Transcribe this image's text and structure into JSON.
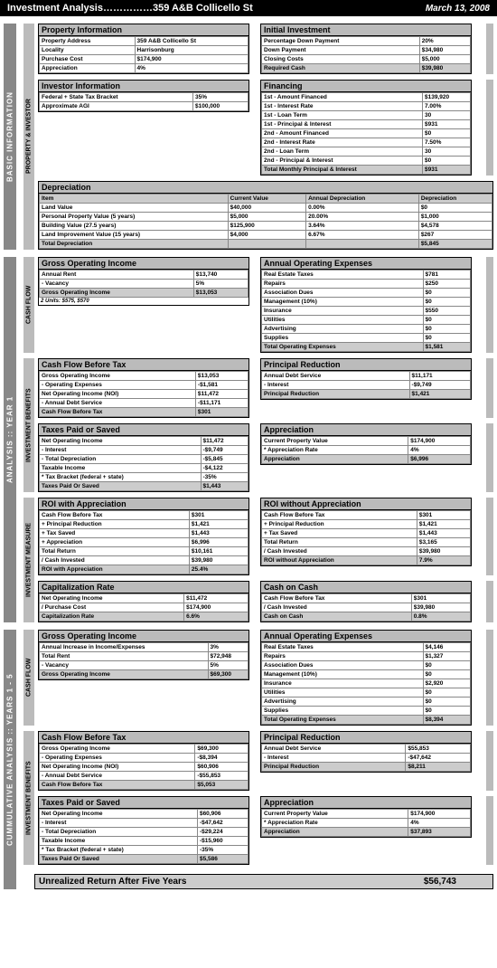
{
  "header": {
    "title": "Investment Analysis……………359 A&B Collicello St",
    "date": "March 13, 2008"
  },
  "sections": {
    "basic": {
      "label": "BASIC INFORMATION",
      "sub": {
        "propInv": {
          "label": "PROPERTY & INVESTOR",
          "propertyInfo": {
            "title": "Property Information",
            "rows": [
              [
                "Property Address",
                "359 A&B Collicello St"
              ],
              [
                "Locality",
                "Harrisonburg"
              ],
              [
                "Purchase Cost",
                "$174,900"
              ],
              [
                "Appreciation",
                "4%"
              ]
            ]
          },
          "initialInvestment": {
            "title": "Initial Investment",
            "rows": [
              [
                "Percentage Down Payment",
                "20%"
              ],
              [
                "Down Payment",
                "$34,980"
              ],
              [
                "Closing Costs",
                "$5,000"
              ]
            ],
            "total": [
              "Required Cash",
              "$39,980"
            ]
          },
          "investorInfo": {
            "title": "Investor Information",
            "rows": [
              [
                "Federal + State Tax Bracket",
                "35%"
              ],
              [
                "Approximate AGI",
                "$100,000"
              ]
            ]
          },
          "financing": {
            "title": "Financing",
            "rows": [
              [
                "1st - Amount Financed",
                "$139,920"
              ],
              [
                "1st - Interest Rate",
                "7.00%"
              ],
              [
                "1st - Loan Term",
                "30"
              ],
              [
                "1st - Principal & Interest",
                "$931"
              ],
              [
                "2nd - Amount Financed",
                "$0"
              ],
              [
                "2nd - Interest Rate",
                "7.50%"
              ],
              [
                "2nd - Loan Term",
                "30"
              ],
              [
                "2nd - Principal & Interest",
                "$0"
              ]
            ],
            "total": [
              "Total Monthly Principal & Interest",
              "$931"
            ]
          },
          "depreciation": {
            "title": "Depreciation",
            "headers": [
              "Item",
              "Current Value",
              "Annual Depreciation",
              "Depreciation"
            ],
            "rows": [
              [
                "Land Value",
                "$40,000",
                "0.00%",
                "$0"
              ],
              [
                "Personal Property Value (5 years)",
                "$5,000",
                "20.00%",
                "$1,000"
              ],
              [
                "Building Value (27.5 years)",
                "$125,900",
                "3.64%",
                "$4,578"
              ],
              [
                "Land Improvement Value (15 years)",
                "$4,000",
                "6.67%",
                "$267"
              ]
            ],
            "total": [
              "Total Depreciation",
              "",
              "",
              "$5,845"
            ]
          }
        }
      }
    },
    "year1": {
      "label": "ANALYSIS  ::  YEAR 1",
      "cashFlow": {
        "label": "CASH FLOW",
        "goi": {
          "title": "Gross Operating Income",
          "rows": [
            [
              "Annual Rent",
              "$13,740"
            ],
            [
              "- Vacancy",
              "5%"
            ]
          ],
          "total": [
            "Gross Operating Income",
            "$13,053"
          ],
          "note": "2 Units: $575, $570"
        },
        "aoe": {
          "title": "Annual Operating Expenses",
          "rows": [
            [
              "Real Estate Taxes",
              "$781"
            ],
            [
              "Repairs",
              "$250"
            ],
            [
              "Association Dues",
              "$0"
            ],
            [
              "Management (10%)",
              "$0"
            ],
            [
              "Insurance",
              "$550"
            ],
            [
              "Utilities",
              "$0"
            ],
            [
              "Advertising",
              "$0"
            ],
            [
              "Supplies",
              "$0"
            ]
          ],
          "total": [
            "Total Operating Expenses",
            "$1,581"
          ]
        }
      },
      "invBenefits": {
        "label": "INVESTMENT BENEFITS",
        "cfbt": {
          "title": "Cash Flow Before Tax",
          "rows": [
            [
              "Gross Operating Income",
              "$13,053"
            ],
            [
              "- Operating Expenses",
              "-$1,581"
            ],
            [
              "Net Operating Income (NOI)",
              "$11,472"
            ],
            [
              "- Annual Debt Service",
              "-$11,171"
            ]
          ],
          "total": [
            "Cash Flow Before Tax",
            "$301"
          ]
        },
        "pr": {
          "title": "Principal Reduction",
          "rows": [
            [
              "Annual Debt Service",
              "$11,171"
            ],
            [
              "- Interest",
              "-$9,749"
            ]
          ],
          "total": [
            "Principal Reduction",
            "$1,421"
          ]
        },
        "taxes": {
          "title": "Taxes Paid or Saved",
          "rows": [
            [
              "Net Operating Income",
              "$11,472"
            ],
            [
              "- Interest",
              "-$9,749"
            ],
            [
              "- Total Depreciation",
              "-$5,845"
            ],
            [
              "Taxable Income",
              "-$4,122"
            ],
            [
              "* Tax Bracket (federal + state)",
              "-35%"
            ]
          ],
          "total": [
            "Taxes Paid Or Saved",
            "$1,443"
          ]
        },
        "apprec": {
          "title": "Appreciation",
          "rows": [
            [
              "Current Property Value",
              "$174,900"
            ],
            [
              "* Appreciation Rate",
              "4%"
            ]
          ],
          "total": [
            "Appreciation",
            "$6,996"
          ]
        }
      },
      "invMeasure": {
        "label": "INVESTMENT MEASURE",
        "roiWith": {
          "title": "ROI with Appreciation",
          "rows": [
            [
              "Cash Flow Before Tax",
              "$301"
            ],
            [
              "+ Principal Reduction",
              "$1,421"
            ],
            [
              "+ Tax Saved",
              "$1,443"
            ],
            [
              "+ Appreciation",
              "$6,996"
            ],
            [
              "Total Return",
              "$10,161"
            ],
            [
              "/ Cash Invested",
              "$39,980"
            ]
          ],
          "total": [
            "ROI with Appreciation",
            "25.4%"
          ]
        },
        "roiWithout": {
          "title": "ROI without Appreciation",
          "rows": [
            [
              "Cash Flow Before Tax",
              "$301"
            ],
            [
              "+ Principal Reduction",
              "$1,421"
            ],
            [
              "+ Tax Saved",
              "$1,443"
            ],
            [
              "Total Return",
              "$3,165"
            ],
            [
              "/ Cash Invested",
              "$39,980"
            ]
          ],
          "total": [
            "ROI without Appreciation",
            "7.9%"
          ]
        },
        "cap": {
          "title": "Capitalization Rate",
          "rows": [
            [
              "Net Operating Income",
              "$11,472"
            ],
            [
              "/ Purchase Cost",
              "$174,900"
            ]
          ],
          "total": [
            "Capitalization Rate",
            "6.6%"
          ]
        },
        "coc": {
          "title": "Cash on Cash",
          "rows": [
            [
              "Cash Flow Before Tax",
              "$301"
            ],
            [
              "/ Cash Invested",
              "$39,980"
            ]
          ],
          "total": [
            "Cash on Cash",
            "0.8%"
          ]
        }
      }
    },
    "years15": {
      "label": "CUMMULATIVE ANALYSIS  ::  YEARS 1 - 5",
      "cashFlow": {
        "label": "CASH FLOW",
        "goi": {
          "title": "Gross Operating Income",
          "rows": [
            [
              "Annual Increase in Income/Expenses",
              "3%"
            ],
            [
              "Total Rent",
              "$72,948"
            ],
            [
              "- Vacancy",
              "5%"
            ]
          ],
          "total": [
            "Gross Operating Income",
            "$69,300"
          ]
        },
        "aoe": {
          "title": "Annual Operating Expenses",
          "rows": [
            [
              "Real Estate Taxes",
              "$4,146"
            ],
            [
              "Repairs",
              "$1,327"
            ],
            [
              "Association Dues",
              "$0"
            ],
            [
              "Management (10%)",
              "$0"
            ],
            [
              "Insurance",
              "$2,920"
            ],
            [
              "Utilities",
              "$0"
            ],
            [
              "Advertising",
              "$0"
            ],
            [
              "Supplies",
              "$0"
            ]
          ],
          "total": [
            "Total Operating Expenses",
            "$8,394"
          ]
        }
      },
      "invBenefits": {
        "label": "INVESTMENT BENEFITS",
        "cfbt": {
          "title": "Cash Flow Before Tax",
          "rows": [
            [
              "Gross Operating Income",
              "$69,300"
            ],
            [
              "- Operating Expenses",
              "-$8,394"
            ],
            [
              "Net Operating Income (NOI)",
              "$60,906"
            ],
            [
              "- Annual Debt Service",
              "-$55,853"
            ]
          ],
          "total": [
            "Cash Flow Before Tax",
            "$5,053"
          ]
        },
        "pr": {
          "title": "Principal Reduction",
          "rows": [
            [
              "Annual Debt Service",
              "$55,853"
            ],
            [
              "- Interest",
              "-$47,642"
            ]
          ],
          "total": [
            "Principal Reduction",
            "$8,211"
          ]
        },
        "taxes": {
          "title": "Taxes Paid or Saved",
          "rows": [
            [
              "Net Operating Income",
              "$60,906"
            ],
            [
              "- Interest",
              "-$47,642"
            ],
            [
              "- Total Depreciation",
              "-$29,224"
            ],
            [
              "Taxable Income",
              "-$15,960"
            ],
            [
              "* Tax Bracket (federal + state)",
              "-35%"
            ]
          ],
          "total": [
            "Taxes Paid Or Saved",
            "$5,586"
          ]
        },
        "apprec": {
          "title": "Appreciation",
          "rows": [
            [
              "Current Property Value",
              "$174,900"
            ],
            [
              "* Appreciation Rate",
              "4%"
            ]
          ],
          "total": [
            "Appreciation",
            "$37,893"
          ]
        }
      },
      "final": {
        "label": "Unrealized Return After Five Years",
        "value": "$56,743"
      }
    }
  }
}
